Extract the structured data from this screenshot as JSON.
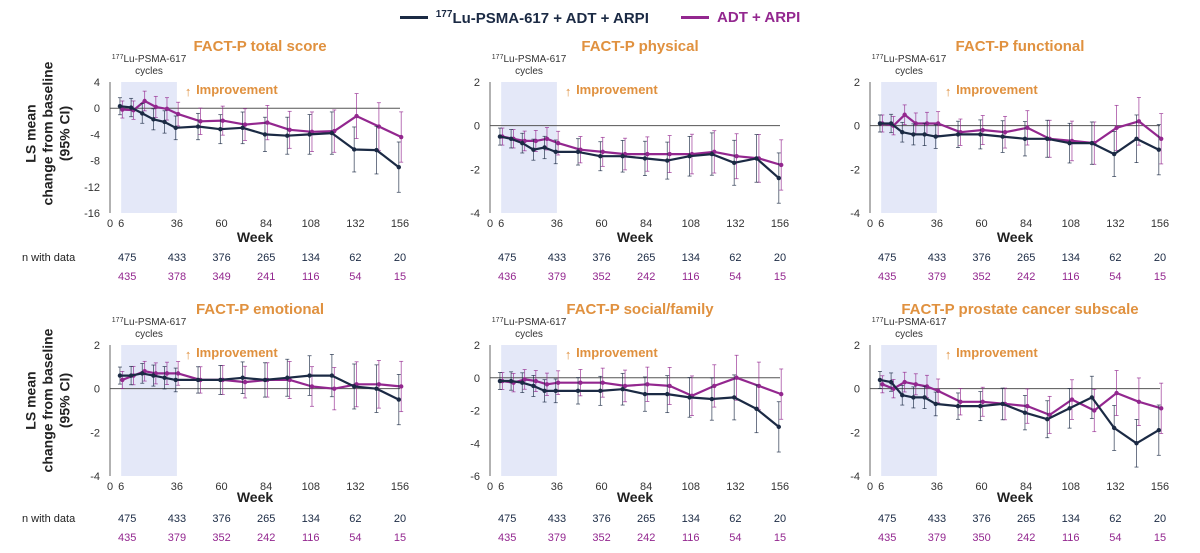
{
  "legend": {
    "series_a": {
      "label_sup": "177",
      "label_rest": "Lu-PSMA-617 + ADT + ARPI",
      "color": "#1b2a44"
    },
    "series_b": {
      "label": "ADT + ARPI",
      "color": "#93278f"
    }
  },
  "y_axis_label": {
    "line1": "LS mean",
    "line2": "change from baseline",
    "line3": "(95% CI)"
  },
  "improvement_label": "Improvement",
  "cycles_label": {
    "sup": "177",
    "rest": "Lu-PSMA-617",
    "line2": "cycles"
  },
  "n_with_data_label": "n with data",
  "x_axis_title": "Week",
  "x_ticks": [
    0,
    6,
    36,
    60,
    84,
    108,
    132,
    156
  ],
  "colors": {
    "title": "#e0913f",
    "shade": "#e4e8f8",
    "series_a": "#1b2a44",
    "series_b": "#93278f"
  },
  "n_with_data": {
    "weeks": [
      6,
      36,
      60,
      84,
      108,
      132,
      156
    ]
  },
  "chart_data": [
    {
      "type": "line",
      "title": "FACT-P total score",
      "ylim": [
        -16,
        4
      ],
      "yticks": [
        4,
        0,
        -4,
        -8,
        -12,
        -16
      ],
      "n_a": [
        475,
        433,
        376,
        265,
        134,
        62,
        20
      ],
      "n_b": [
        435,
        378,
        349,
        241,
        116,
        54,
        15
      ],
      "series": [
        {
          "name": "177Lu-PSMA-617 + ADT + ARPI",
          "x": [
            6,
            12,
            18,
            24,
            30,
            36,
            48,
            60,
            72,
            84,
            96,
            108,
            120,
            132,
            144,
            156
          ],
          "y": [
            0.3,
            0.1,
            -0.8,
            -1.7,
            -2.1,
            -3.0,
            -2.8,
            -3.2,
            -3.0,
            -4.0,
            -4.2,
            -4.0,
            -3.8,
            -6.3,
            -6.4,
            -9.0
          ]
        },
        {
          "name": "ADT + ARPI",
          "x": [
            6,
            12,
            18,
            24,
            30,
            36,
            48,
            60,
            72,
            84,
            96,
            108,
            120,
            132,
            144,
            156
          ],
          "y": [
            -0.2,
            -0.3,
            1.1,
            0.2,
            -0.1,
            -0.9,
            -2.0,
            -1.9,
            -2.5,
            -2.2,
            -3.3,
            -3.6,
            -3.5,
            -1.2,
            -2.8,
            -4.4
          ]
        }
      ]
    },
    {
      "type": "line",
      "title": "FACT-P physical",
      "ylim": [
        -4,
        2
      ],
      "yticks": [
        2,
        0,
        -2,
        -4
      ],
      "n_a": [
        475,
        433,
        376,
        265,
        134,
        62,
        20
      ],
      "n_b": [
        436,
        379,
        352,
        242,
        116,
        54,
        15
      ],
      "series": [
        {
          "name": "177Lu-PSMA-617 + ADT + ARPI",
          "x": [
            6,
            12,
            18,
            24,
            30,
            36,
            48,
            60,
            72,
            84,
            96,
            108,
            120,
            132,
            144,
            156
          ],
          "y": [
            -0.5,
            -0.6,
            -0.8,
            -1.1,
            -1.0,
            -1.2,
            -1.2,
            -1.4,
            -1.4,
            -1.5,
            -1.6,
            -1.4,
            -1.3,
            -1.7,
            -1.5,
            -2.4
          ]
        },
        {
          "name": "ADT + ARPI",
          "x": [
            6,
            12,
            18,
            24,
            30,
            36,
            48,
            60,
            72,
            84,
            96,
            108,
            120,
            132,
            144,
            156
          ],
          "y": [
            -0.5,
            -0.6,
            -0.7,
            -0.7,
            -0.6,
            -0.8,
            -1.1,
            -1.2,
            -1.3,
            -1.3,
            -1.3,
            -1.3,
            -1.2,
            -1.4,
            -1.5,
            -1.8
          ]
        }
      ]
    },
    {
      "type": "line",
      "title": "FACT-P functional",
      "ylim": [
        -4,
        2
      ],
      "yticks": [
        2,
        0,
        -2,
        -4
      ],
      "n_a": [
        475,
        433,
        376,
        265,
        134,
        62,
        20
      ],
      "n_b": [
        435,
        379,
        352,
        242,
        116,
        54,
        15
      ],
      "series": [
        {
          "name": "177Lu-PSMA-617 + ADT + ARPI",
          "x": [
            6,
            12,
            18,
            24,
            30,
            36,
            48,
            60,
            72,
            84,
            96,
            108,
            120,
            132,
            144,
            156
          ],
          "y": [
            0.1,
            0.1,
            -0.3,
            -0.4,
            -0.4,
            -0.5,
            -0.4,
            -0.4,
            -0.5,
            -0.6,
            -0.6,
            -0.8,
            -0.8,
            -1.3,
            -0.6,
            -1.1
          ]
        },
        {
          "name": "ADT + ARPI",
          "x": [
            6,
            12,
            18,
            24,
            30,
            36,
            48,
            60,
            72,
            84,
            96,
            108,
            120,
            132,
            144,
            156
          ],
          "y": [
            0.1,
            0.0,
            0.5,
            0.1,
            0.1,
            0.1,
            -0.3,
            -0.2,
            -0.3,
            -0.1,
            -0.6,
            -0.7,
            -0.8,
            -0.1,
            0.2,
            -0.6
          ]
        }
      ]
    },
    {
      "type": "line",
      "title": "FACT-P emotional",
      "ylim": [
        -4,
        2
      ],
      "yticks": [
        2,
        0,
        -2,
        -4
      ],
      "n_a": [
        475,
        433,
        376,
        265,
        134,
        62,
        20
      ],
      "n_b": [
        435,
        379,
        352,
        242,
        116,
        54,
        15
      ],
      "series": [
        {
          "name": "177Lu-PSMA-617 + ADT + ARPI",
          "x": [
            6,
            12,
            18,
            24,
            30,
            36,
            48,
            60,
            72,
            84,
            96,
            108,
            120,
            132,
            144,
            156
          ],
          "y": [
            0.6,
            0.6,
            0.7,
            0.6,
            0.5,
            0.4,
            0.4,
            0.4,
            0.5,
            0.4,
            0.5,
            0.6,
            0.6,
            0.1,
            0.0,
            -0.5
          ]
        },
        {
          "name": "ADT + ARPI",
          "x": [
            6,
            12,
            18,
            24,
            30,
            36,
            48,
            60,
            72,
            84,
            96,
            108,
            120,
            132,
            144,
            156
          ],
          "y": [
            0.4,
            0.6,
            0.8,
            0.7,
            0.7,
            0.7,
            0.4,
            0.4,
            0.3,
            0.4,
            0.4,
            0.1,
            0.0,
            0.2,
            0.2,
            0.1
          ]
        }
      ]
    },
    {
      "type": "line",
      "title": "FACT-P social/family",
      "ylim": [
        -6,
        2
      ],
      "yticks": [
        2,
        0,
        -2,
        -4,
        -6
      ],
      "n_a": [
        475,
        433,
        376,
        265,
        134,
        62,
        20
      ],
      "n_b": [
        435,
        379,
        352,
        242,
        116,
        54,
        15
      ],
      "series": [
        {
          "name": "177Lu-PSMA-617 + ADT + ARPI",
          "x": [
            6,
            12,
            18,
            24,
            30,
            36,
            48,
            60,
            72,
            84,
            96,
            108,
            120,
            132,
            144,
            156
          ],
          "y": [
            -0.2,
            -0.2,
            -0.3,
            -0.5,
            -0.8,
            -0.8,
            -0.8,
            -0.8,
            -0.7,
            -1.0,
            -1.0,
            -1.2,
            -1.3,
            -1.2,
            -1.9,
            -3.0
          ]
        },
        {
          "name": "ADT + ARPI",
          "x": [
            6,
            12,
            18,
            24,
            30,
            36,
            48,
            60,
            72,
            84,
            96,
            108,
            120,
            132,
            144,
            156
          ],
          "y": [
            -0.2,
            -0.3,
            -0.1,
            -0.2,
            -0.4,
            -0.3,
            -0.3,
            -0.3,
            -0.5,
            -0.4,
            -0.5,
            -1.1,
            -0.5,
            0.0,
            -0.5,
            -1.0
          ]
        }
      ]
    },
    {
      "type": "line",
      "title": "FACT-P prostate cancer subscale",
      "ylim": [
        -4,
        2
      ],
      "yticks": [
        2,
        0,
        -2,
        -4
      ],
      "n_a": [
        475,
        433,
        376,
        265,
        134,
        62,
        20
      ],
      "n_b": [
        435,
        379,
        350,
        242,
        116,
        54,
        15
      ],
      "series": [
        {
          "name": "177Lu-PSMA-617 + ADT + ARPI",
          "x": [
            6,
            12,
            18,
            24,
            30,
            36,
            48,
            60,
            72,
            84,
            96,
            108,
            120,
            132,
            144,
            156
          ],
          "y": [
            0.4,
            0.3,
            -0.3,
            -0.4,
            -0.4,
            -0.7,
            -0.8,
            -0.8,
            -0.7,
            -1.1,
            -1.4,
            -0.9,
            -0.4,
            -1.8,
            -2.5,
            -1.9
          ]
        },
        {
          "name": "ADT + ARPI",
          "x": [
            6,
            12,
            18,
            24,
            30,
            36,
            48,
            60,
            72,
            84,
            96,
            108,
            120,
            132,
            144,
            156
          ],
          "y": [
            0.2,
            0.0,
            0.3,
            0.2,
            0.1,
            -0.1,
            -0.6,
            -0.6,
            -0.7,
            -0.8,
            -1.2,
            -0.5,
            -1.0,
            -0.2,
            -0.6,
            -0.9
          ]
        }
      ]
    }
  ]
}
